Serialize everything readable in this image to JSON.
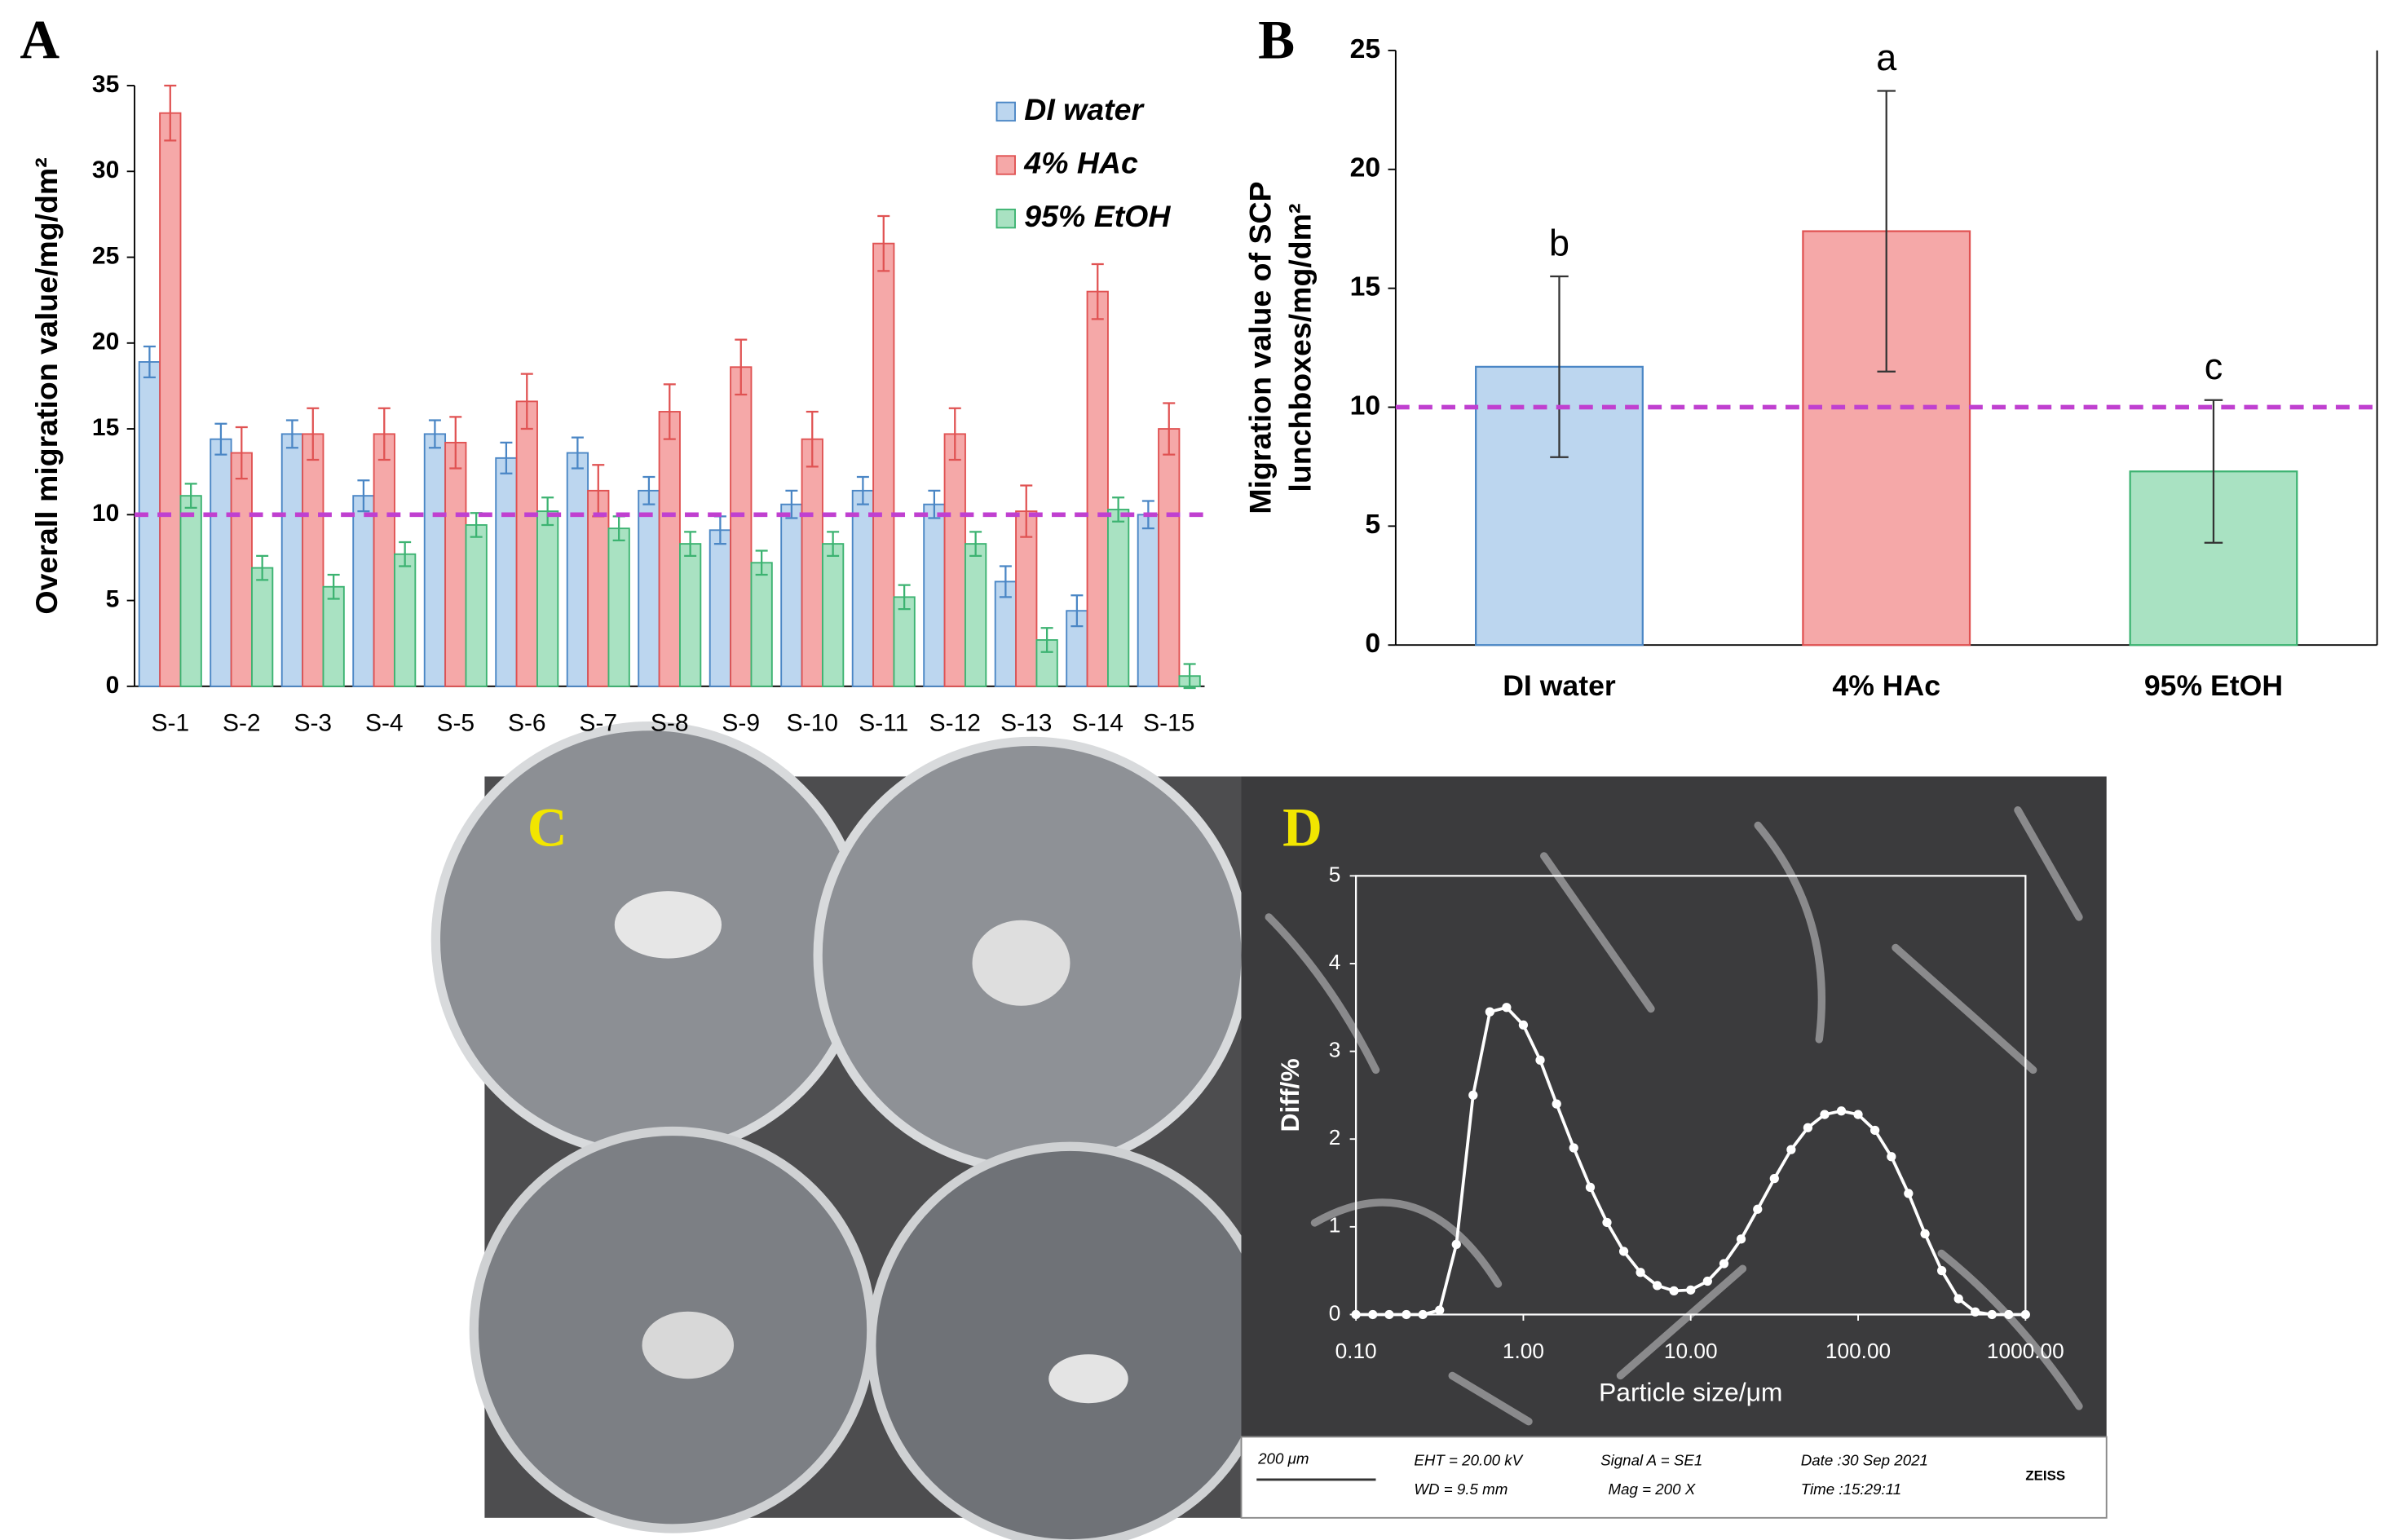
{
  "chart_data": [
    {
      "type": "bar",
      "panel_label": "A",
      "ylabel": "Overall migration value/mg/dm²",
      "categories": [
        "S-1",
        "S-2",
        "S-3",
        "S-4",
        "S-5",
        "S-6",
        "S-7",
        "S-8",
        "S-9",
        "S-10",
        "S-11",
        "S-12",
        "S-13",
        "S-14",
        "S-15"
      ],
      "series": [
        {
          "name": "DI water",
          "color": "#bcd6ef",
          "edge": "#4a86c5",
          "values": [
            18.9,
            14.4,
            14.7,
            11.1,
            14.7,
            13.3,
            13.6,
            11.4,
            9.1,
            10.6,
            11.4,
            10.6,
            6.1,
            4.4,
            10.0
          ],
          "errors": [
            0.9,
            0.9,
            0.8,
            0.9,
            0.8,
            0.9,
            0.9,
            0.8,
            0.8,
            0.8,
            0.8,
            0.8,
            0.9,
            0.9,
            0.8
          ]
        },
        {
          "name": "4% HAc",
          "color": "#f5a8a8",
          "edge": "#e05252",
          "values": [
            33.4,
            13.6,
            14.7,
            14.7,
            14.2,
            16.6,
            11.4,
            16.0,
            18.6,
            14.4,
            25.8,
            14.7,
            10.2,
            23.0,
            15.0
          ],
          "errors": [
            1.6,
            1.5,
            1.5,
            1.5,
            1.5,
            1.6,
            1.5,
            1.6,
            1.6,
            1.6,
            1.6,
            1.5,
            1.5,
            1.6,
            1.5
          ]
        },
        {
          "name": "95% EtOH",
          "color": "#a9e2c2",
          "edge": "#3cb371",
          "values": [
            11.1,
            6.9,
            5.8,
            7.7,
            9.4,
            10.2,
            9.2,
            8.3,
            7.2,
            8.3,
            5.2,
            8.3,
            2.7,
            10.3,
            0.6
          ],
          "errors": [
            0.7,
            0.7,
            0.7,
            0.7,
            0.7,
            0.8,
            0.7,
            0.7,
            0.7,
            0.7,
            0.7,
            0.7,
            0.7,
            0.7,
            0.7
          ]
        }
      ],
      "ylim": [
        0,
        35
      ],
      "yticks": [
        0,
        5,
        10,
        15,
        20,
        25,
        30,
        35
      ],
      "threshold": 10,
      "threshold_color": "#c040d0",
      "legend": "upper right",
      "grid": false
    },
    {
      "type": "bar",
      "panel_label": "B",
      "ylabel": [
        "Migration value of SCP",
        "lunchboxes/mg/dm²"
      ],
      "categories": [
        "DI water",
        "4% HAc",
        "95% EtOH"
      ],
      "values": [
        11.7,
        17.4,
        7.3
      ],
      "errors": [
        3.8,
        5.9,
        3.0
      ],
      "colors": [
        "#bcd6ef",
        "#f5a8a8",
        "#a9e2c2"
      ],
      "edges": [
        "#4a86c5",
        "#e05252",
        "#3cb371"
      ],
      "annotations": [
        "b",
        "a",
        "c"
      ],
      "ylim": [
        0,
        25
      ],
      "yticks": [
        0,
        5,
        10,
        15,
        20,
        25
      ],
      "threshold": 10,
      "threshold_color": "#c040d0",
      "grid": false
    },
    {
      "type": "line",
      "panel_label": "D",
      "xlabel": "Particle size/μm",
      "ylabel": "Diff/%",
      "xscale": "log",
      "color": "#ffffff",
      "x": [
        0.1,
        0.126,
        0.158,
        0.2,
        0.251,
        0.316,
        0.398,
        0.501,
        0.631,
        0.794,
        1,
        1.26,
        1.58,
        2,
        2.51,
        3.16,
        3.98,
        5.01,
        6.31,
        7.94,
        10,
        12.6,
        15.8,
        20,
        25.1,
        31.6,
        39.8,
        50.1,
        63.1,
        79.4,
        100,
        126,
        158,
        200,
        251,
        316,
        398,
        501,
        631,
        794,
        1000
      ],
      "values": [
        0,
        0,
        0,
        0,
        0,
        0.05,
        0.8,
        2.5,
        3.45,
        3.5,
        3.3,
        2.9,
        2.4,
        1.9,
        1.45,
        1.05,
        0.72,
        0.48,
        0.33,
        0.27,
        0.28,
        0.38,
        0.58,
        0.86,
        1.2,
        1.55,
        1.88,
        2.13,
        2.28,
        2.32,
        2.28,
        2.1,
        1.8,
        1.38,
        0.92,
        0.5,
        0.18,
        0.03,
        0,
        0,
        0
      ],
      "xlim": [
        0.1,
        1000
      ],
      "xticks": [
        {
          "value": 0.1,
          "label": "0.10"
        },
        {
          "value": 1,
          "label": "1.00"
        },
        {
          "value": 10,
          "label": "10.00"
        },
        {
          "value": 100,
          "label": "100.00"
        },
        {
          "value": 1000,
          "label": "1000.00"
        }
      ],
      "ylim": [
        0,
        5
      ],
      "yticks": [
        0,
        1,
        2,
        3,
        4,
        5
      ],
      "grid": false
    }
  ],
  "photo": {
    "panel_label": "C"
  },
  "sem_bar": {
    "scale": "200 μm",
    "eht": "EHT = 20.00 kV",
    "wd": "WD =  9.5 mm",
    "signal": "Signal A = SE1",
    "mag": "Mag =  200 X",
    "date": "Date :30 Sep 2021",
    "time": "Time :15:29:11",
    "brand": "ZEISS"
  }
}
